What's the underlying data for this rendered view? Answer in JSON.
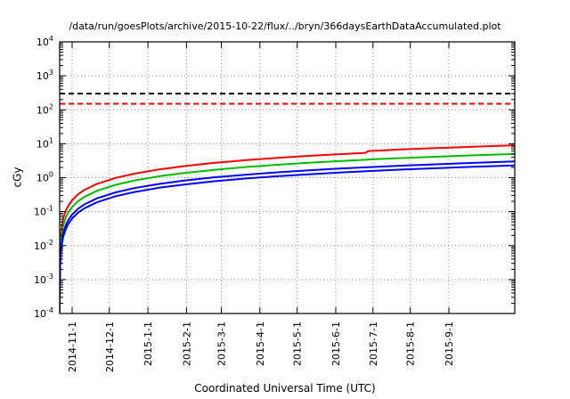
{
  "chart_data": {
    "type": "line",
    "title": "/data/run/goesPlots/archive/2015-10-22/flux/../bryn/366daysEarthDataAccumulated.plot",
    "xlabel": "Coordinated Universal Time (UTC)",
    "ylabel": "cGy",
    "y_scale": "log10",
    "y_exponent_range": [
      -4,
      4
    ],
    "y_tick_exponents": [
      -4,
      -3,
      -2,
      -1,
      0,
      1,
      2,
      3,
      4
    ],
    "xlim": [
      0,
      366
    ],
    "grid": true,
    "legend": "none",
    "x_ticks": [
      {
        "day": 10,
        "label": "2014-11-1"
      },
      {
        "day": 40,
        "label": "2014-12-1"
      },
      {
        "day": 71,
        "label": "2015-1-1"
      },
      {
        "day": 102,
        "label": "2015-2-1"
      },
      {
        "day": 130,
        "label": "2015-3-1"
      },
      {
        "day": 161,
        "label": "2015-4-1"
      },
      {
        "day": 191,
        "label": "2015-5-1"
      },
      {
        "day": 222,
        "label": "2015-6-1"
      },
      {
        "day": 252,
        "label": "2015-7-1"
      },
      {
        "day": 282,
        "label": "2015-8-1"
      },
      {
        "day": 313,
        "label": "2015-9-1"
      }
    ],
    "thresholds": [
      {
        "name": "black-limit",
        "value": 300,
        "color": "#000000",
        "style": "dashed"
      },
      {
        "name": "red-limit",
        "value": 150,
        "color": "#ff0000",
        "style": "dashed"
      }
    ],
    "series": [
      {
        "name": "accumulated-red",
        "color": "#ff0000",
        "x": [
          0.005,
          0.01,
          0.02,
          0.05,
          0.1,
          0.2,
          0.5,
          1,
          2,
          3,
          5,
          7,
          10,
          15,
          20,
          30,
          45,
          60,
          80,
          100,
          125,
          150,
          175,
          200,
          225,
          246,
          248,
          275,
          300,
          330,
          366
        ],
        "y": [
          0.00011,
          0.00022,
          0.00044,
          0.0011,
          0.0022,
          0.0044,
          0.011,
          0.022,
          0.044,
          0.066,
          0.11,
          0.15,
          0.22,
          0.33,
          0.44,
          0.66,
          0.99,
          1.31,
          1.75,
          2.19,
          2.74,
          3.29,
          3.83,
          4.38,
          4.93,
          5.39,
          6.1,
          6.8,
          7.4,
          8.1,
          9.0
        ]
      },
      {
        "name": "accumulated-green",
        "color": "#00bb00",
        "x": [
          0.005,
          0.01,
          0.02,
          0.05,
          0.1,
          0.2,
          0.5,
          1,
          2,
          3,
          5,
          7,
          10,
          15,
          20,
          30,
          45,
          60,
          80,
          100,
          125,
          150,
          175,
          200,
          225,
          246,
          248,
          275,
          300,
          330,
          366
        ],
        "y": [
          6.9e-05,
          0.000137,
          0.000274,
          0.000685,
          0.00137,
          0.00274,
          0.00685,
          0.0137,
          0.0274,
          0.0411,
          0.0685,
          0.0959,
          0.137,
          0.206,
          0.274,
          0.411,
          0.617,
          0.822,
          1.1,
          1.37,
          1.71,
          2.06,
          2.4,
          2.74,
          3.08,
          3.37,
          3.45,
          3.77,
          4.11,
          4.52,
          5.0
        ]
      },
      {
        "name": "accumulated-blue-upper",
        "color": "#0000ff",
        "x": [
          0.005,
          0.01,
          0.02,
          0.05,
          0.1,
          0.2,
          0.5,
          1,
          2,
          3,
          5,
          7,
          10,
          15,
          20,
          30,
          45,
          60,
          80,
          100,
          125,
          150,
          175,
          200,
          225,
          246,
          248,
          275,
          300,
          330,
          366
        ],
        "y": [
          4.1e-05,
          8.2e-05,
          0.000164,
          0.00041,
          0.00082,
          0.00164,
          0.0041,
          0.0082,
          0.0164,
          0.0246,
          0.041,
          0.0574,
          0.082,
          0.123,
          0.164,
          0.246,
          0.369,
          0.492,
          0.656,
          0.82,
          1.03,
          1.23,
          1.44,
          1.64,
          1.85,
          2.02,
          2.03,
          2.26,
          2.46,
          2.71,
          3.0
        ]
      },
      {
        "name": "accumulated-blue-lower",
        "color": "#0000ff",
        "x": [
          0.005,
          0.01,
          0.02,
          0.05,
          0.1,
          0.2,
          0.5,
          1,
          2,
          3,
          5,
          7,
          10,
          15,
          20,
          30,
          45,
          60,
          80,
          100,
          125,
          150,
          175,
          200,
          225,
          246,
          248,
          275,
          300,
          330,
          366
        ],
        "y": [
          3.15e-05,
          6.3e-05,
          0.000126,
          0.000315,
          0.00063,
          0.00126,
          0.00315,
          0.0063,
          0.0126,
          0.0189,
          0.0315,
          0.0441,
          0.063,
          0.0945,
          0.126,
          0.189,
          0.284,
          0.378,
          0.504,
          0.63,
          0.788,
          0.945,
          1.1,
          1.26,
          1.42,
          1.55,
          1.56,
          1.73,
          1.89,
          2.08,
          2.3
        ]
      }
    ]
  }
}
